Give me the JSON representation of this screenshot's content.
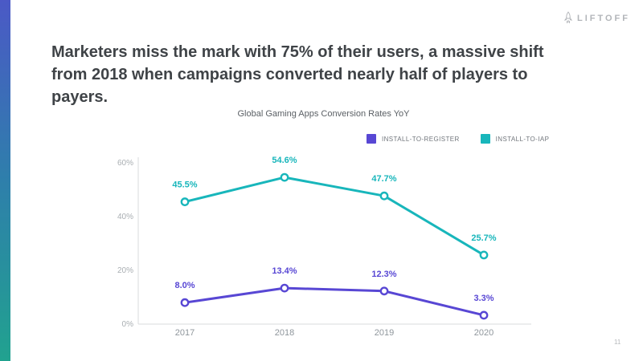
{
  "slide": {
    "headline_lines": [
      "Marketers miss the mark with 75% of their users, a massive shift",
      "from 2018 when campaigns converted nearly half of players to",
      "payers."
    ],
    "logo_text": "LIFTOFF",
    "page_number": "11",
    "edge_gradient": {
      "top": "#4b59c6",
      "bottom": "#21a28f"
    }
  },
  "chart_data": {
    "type": "line",
    "title": "Global Gaming Apps Conversion Rates YoY",
    "categories": [
      "2017",
      "2018",
      "2019",
      "2020"
    ],
    "series": [
      {
        "name": "INSTALL-TO-REGISTER",
        "color": "#5847d4",
        "values": [
          8.0,
          13.4,
          12.3,
          3.3
        ],
        "labels": [
          "8.0%",
          "13.4%",
          "12.3%",
          "3.3%"
        ]
      },
      {
        "name": "INSTALL-TO-IAP",
        "color": "#18b6bb",
        "values": [
          45.5,
          54.6,
          47.7,
          25.7
        ],
        "labels": [
          "45.5%",
          "54.6%",
          "47.7%",
          "25.7%"
        ]
      }
    ],
    "ylim": [
      0,
      60
    ],
    "yticks": [
      0,
      20,
      40,
      60
    ],
    "ytick_labels": [
      "0%",
      "20%",
      "40%",
      "60%"
    ],
    "legend_position": "top-right",
    "grid": false,
    "axis_color": "#d9dbdd",
    "ytick_color": "#a9aeb2",
    "xtick_color": "#8f969c"
  }
}
